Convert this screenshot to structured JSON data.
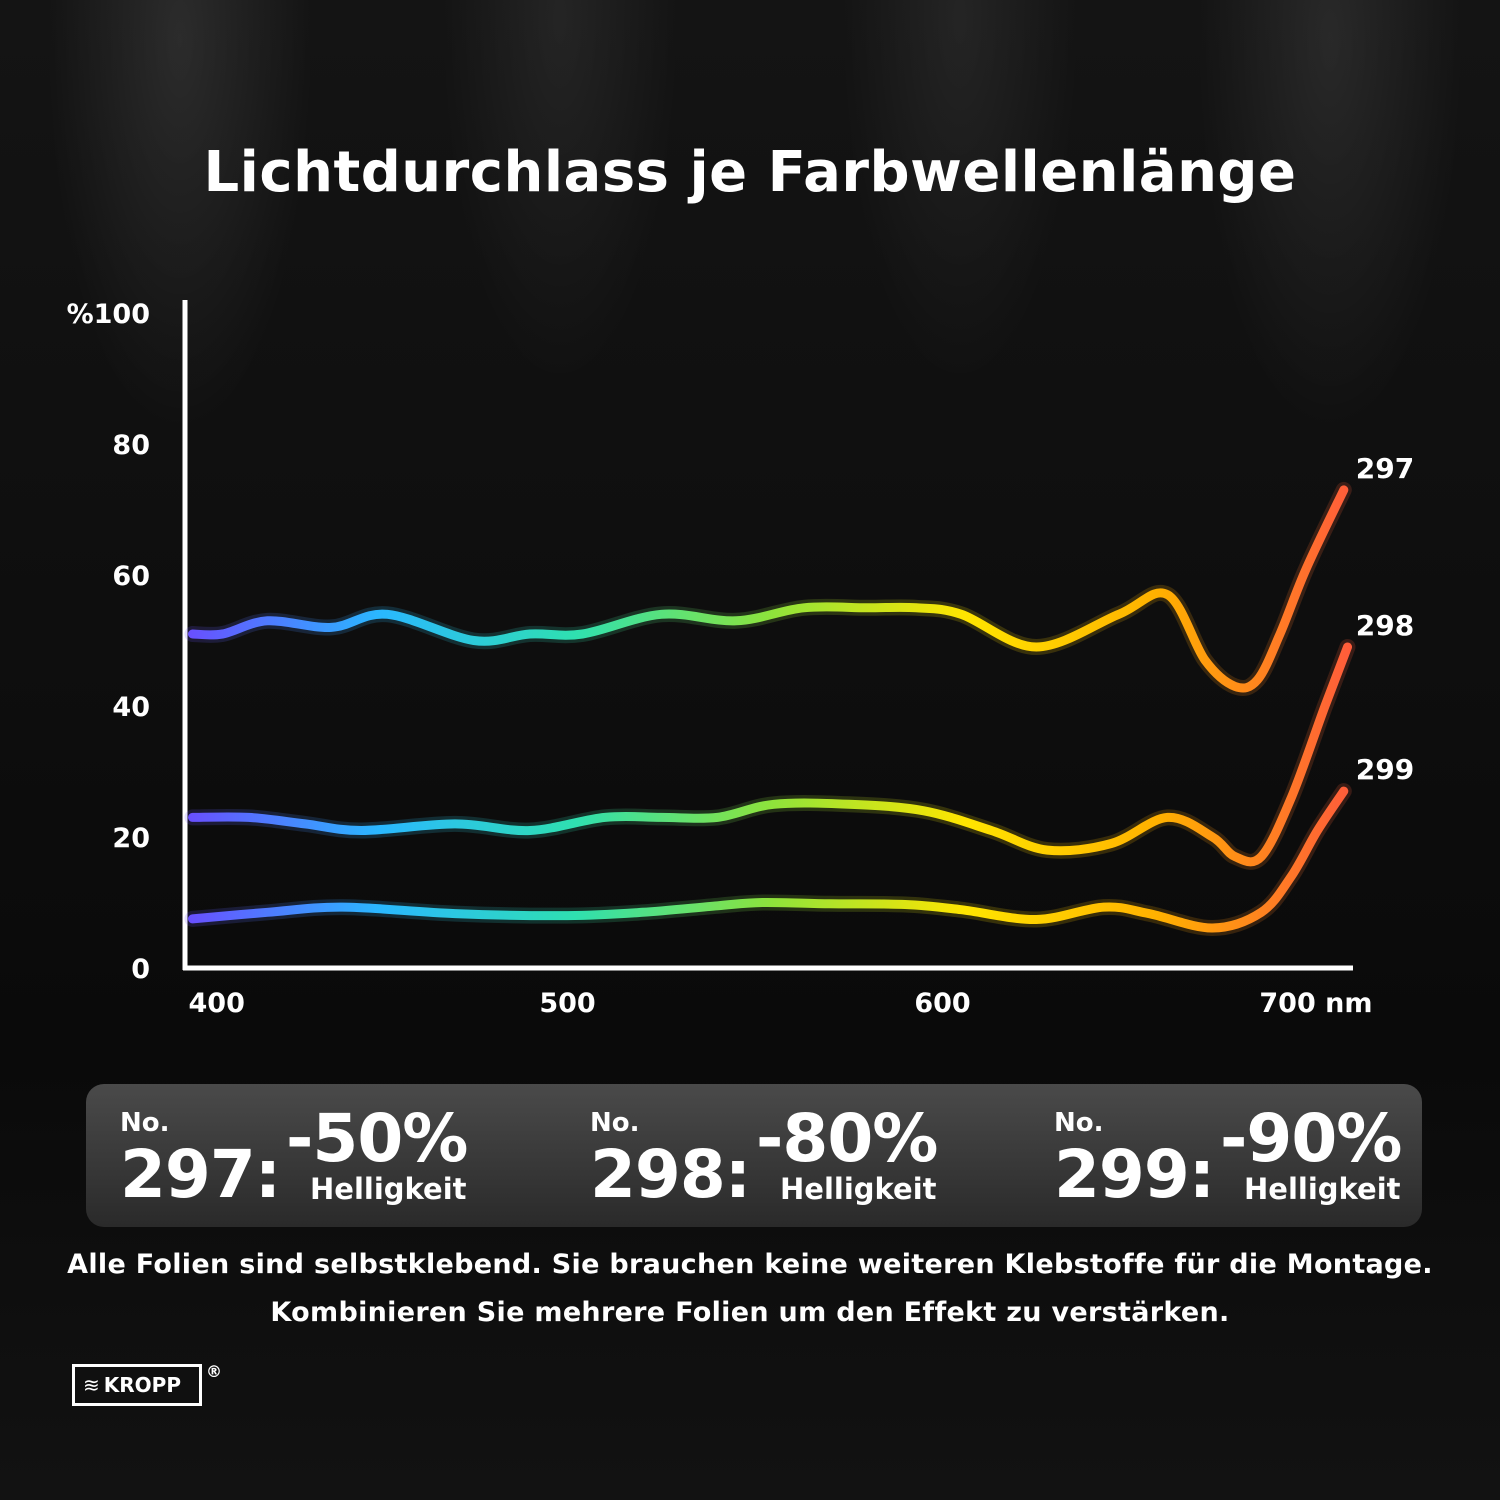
{
  "chart_data": {
    "type": "line",
    "title": "Lichtdurchlass je Farbwellenlänge",
    "ylabel": "%",
    "xlabel": "nm",
    "xlim": [
      398,
      710
    ],
    "ylim": [
      0,
      100
    ],
    "x_ticks": [
      400,
      500,
      600,
      700
    ],
    "x_tick_labels": [
      "400",
      "500",
      "600",
      "700 nm"
    ],
    "y_ticks": [
      0,
      20,
      40,
      60,
      80,
      100
    ],
    "y_tick_labels": [
      "0",
      "20",
      "40",
      "60",
      "80",
      "%100"
    ],
    "grid": false,
    "legend": "end-labels",
    "gradient_colors": [
      "#6a4dff",
      "#2ab8ff",
      "#2fe0b0",
      "#8de33c",
      "#ffe500",
      "#ffb000",
      "#ff5a3c"
    ],
    "series": [
      {
        "name": "297",
        "x": [
          400,
          408,
          420,
          437,
          452,
          475,
          490,
          504,
          525,
          545,
          563,
          580,
          593,
          605,
          625,
          647,
          660,
          670,
          678,
          684,
          690,
          697,
          707
        ],
        "values": [
          51,
          51,
          53,
          52,
          54,
          50,
          51,
          51,
          54,
          53,
          55,
          55,
          55,
          54,
          49,
          54,
          57,
          47,
          43,
          44,
          51,
          61,
          73
        ]
      },
      {
        "name": "298",
        "x": [
          400,
          415,
          430,
          445,
          470,
          490,
          510,
          525,
          540,
          555,
          575,
          595,
          613,
          628,
          645,
          660,
          672,
          678,
          685,
          693,
          702,
          708
        ],
        "values": [
          23,
          23,
          22,
          21,
          22,
          21,
          23,
          23,
          23,
          25,
          25,
          24,
          21,
          18,
          19,
          23,
          20,
          17,
          17,
          26,
          40,
          49
        ]
      },
      {
        "name": "299",
        "x": [
          400,
          420,
          440,
          470,
          500,
          520,
          540,
          552,
          570,
          590,
          605,
          625,
          643,
          655,
          672,
          685,
          693,
          700,
          707
        ],
        "values": [
          7.5,
          8.5,
          9.3,
          8.3,
          8.0,
          8.5,
          9.5,
          10.0,
          9.8,
          9.7,
          8.9,
          7.4,
          9.3,
          8.3,
          6.1,
          8.5,
          14,
          21,
          27
        ]
      }
    ]
  },
  "products": [
    {
      "no_label": "No.",
      "number": "297:",
      "percent": "-50%",
      "caption": "Helligkeit"
    },
    {
      "no_label": "No.",
      "number": "298:",
      "percent": "-80%",
      "caption": "Helligkeit"
    },
    {
      "no_label": "No.",
      "number": "299:",
      "percent": "-90%",
      "caption": "Helligkeit"
    }
  ],
  "footer": {
    "line1": "Alle Folien sind selbstklebend. Sie brauchen keine weiteren Klebstoffe für die Montage.",
    "line2": "Kombinieren Sie mehrere Folien um den Effekt zu verstärken."
  },
  "logo": {
    "icon": "waves-icon",
    "name": "KROPP",
    "registered": "®"
  }
}
